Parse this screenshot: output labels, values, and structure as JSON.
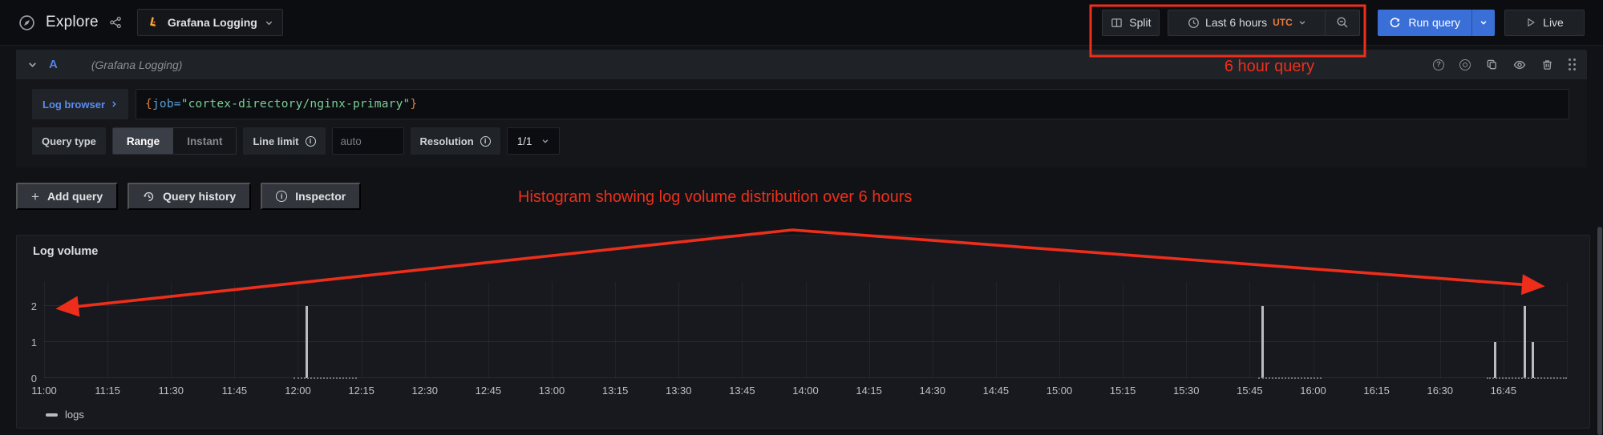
{
  "colors": {
    "accent_blue": "#3a6fd8",
    "annotation_red": "#ee2e1b",
    "utc_orange": "#eb7b3c",
    "ref_id_blue": "#5083e6",
    "link_blue": "#5a8df0",
    "query_brace": "#d9813c",
    "query_key": "#569fd6",
    "query_string": "#7bcf96",
    "bar_gray": "#b9bbbf"
  },
  "topbar": {
    "title": "Explore",
    "datasource_picker": {
      "selected": "Grafana Logging"
    },
    "split_label": "Split",
    "time_picker": {
      "range_label": "Last 6 hours",
      "timezone": "UTC"
    },
    "run_query_label": "Run query",
    "live_label": "Live"
  },
  "query_row": {
    "ref_id": "A",
    "datasource_hint": "(Grafana Logging)",
    "log_browser_label": "Log browser",
    "query": {
      "open_brace": "{",
      "label_key": "job",
      "equals": "=",
      "label_value": "\"cortex-directory/nginx-primary\"",
      "close_brace": "}"
    },
    "options": {
      "query_type_label": "Query type",
      "range_label": "Range",
      "instant_label": "Instant",
      "line_limit_label": "Line limit",
      "line_limit_value": "auto",
      "resolution_label": "Resolution",
      "resolution_value": "1/1"
    }
  },
  "actions": {
    "add_query_label": "Add query",
    "query_history_label": "Query history",
    "inspector_label": "Inspector"
  },
  "annotations": {
    "box_note": "6 hour query",
    "histogram_note": "Histogram showing log volume distribution over 6 hours"
  },
  "panel": {
    "title": "Log volume",
    "legend_label": "logs"
  },
  "chart_data": {
    "type": "bar",
    "title": "Log volume",
    "x_range": [
      "11:00",
      "17:00"
    ],
    "x_ticks": [
      "11:00",
      "11:15",
      "11:30",
      "11:45",
      "12:00",
      "12:15",
      "12:30",
      "12:45",
      "13:00",
      "13:15",
      "13:30",
      "13:45",
      "14:00",
      "14:15",
      "14:30",
      "14:45",
      "15:00",
      "15:15",
      "15:30",
      "15:45",
      "16:00",
      "16:15",
      "16:30",
      "16:45"
    ],
    "y_ticks": [
      0,
      1,
      2
    ],
    "ylim": [
      0,
      2.67
    ],
    "grid": true,
    "legend_position": "bottom-left",
    "series": [
      {
        "name": "logs",
        "color": "#b9bbbf",
        "points": [
          {
            "time": "12:02",
            "value": 2
          },
          {
            "time": "15:48",
            "value": 2
          },
          {
            "time": "16:43",
            "value": 1
          },
          {
            "time": "16:50",
            "value": 2
          },
          {
            "time": "16:52",
            "value": 1
          }
        ]
      }
    ],
    "zero_value_segments": [
      [
        "11:59",
        "12:14"
      ],
      [
        "15:47",
        "16:02"
      ],
      [
        "16:41",
        "17:00"
      ]
    ]
  }
}
